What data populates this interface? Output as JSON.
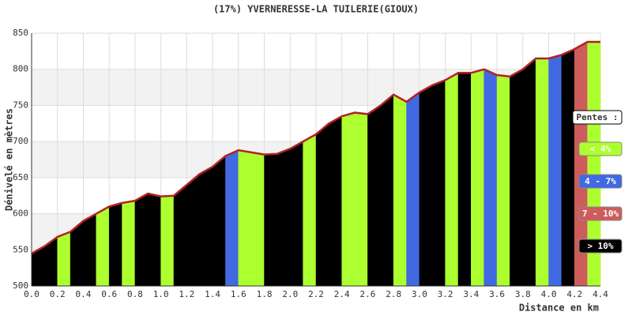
{
  "chart_data": {
    "type": "profile",
    "title": "(17%) YVERNERESSE-LA TUILERIE(GIOUX)",
    "x_label": "Distance en km",
    "y_label": "Dénivelé en mètres",
    "legend_title": "Pentes :",
    "x": [
      0.0,
      0.1,
      0.2,
      0.3,
      0.4,
      0.5,
      0.6,
      0.7,
      0.8,
      0.9,
      1.0,
      1.1,
      1.2,
      1.3,
      1.4,
      1.5,
      1.6,
      1.7,
      1.8,
      1.9,
      2.0,
      2.1,
      2.2,
      2.3,
      2.4,
      2.5,
      2.6,
      2.7,
      2.8,
      2.9,
      3.0,
      3.1,
      3.2,
      3.3,
      3.4,
      3.5,
      3.6,
      3.7,
      3.8,
      3.9,
      4.0,
      4.1,
      4.2,
      4.3,
      4.4
    ],
    "values": [
      545,
      555,
      568,
      575,
      590,
      600,
      610,
      615,
      618,
      628,
      624,
      625,
      640,
      655,
      665,
      680,
      688,
      685,
      682,
      683,
      690,
      700,
      710,
      725,
      735,
      740,
      738,
      750,
      765,
      755,
      768,
      778,
      785,
      795,
      795,
      800,
      792,
      790,
      800,
      815,
      815,
      820,
      828,
      838,
      838
    ],
    "classes": [
      3,
      3,
      0,
      3,
      3,
      0,
      3,
      0,
      3,
      3,
      0,
      3,
      3,
      3,
      3,
      1,
      0,
      0,
      3,
      3,
      3,
      0,
      3,
      3,
      0,
      0,
      3,
      3,
      0,
      1,
      3,
      3,
      0,
      3,
      0,
      1,
      0,
      3,
      3,
      0,
      1,
      3,
      2,
      0
    ],
    "series": [
      {
        "name": "< 4%",
        "color": "#adff2f"
      },
      {
        "name": "4 - 7%",
        "color": "#4169e1"
      },
      {
        "name": "7 - 10%",
        "color": "#cd5c5c"
      },
      {
        "name": "> 10%",
        "color": "#000000"
      }
    ],
    "line_color": "#b22222",
    "xlim": [
      0,
      4.4
    ],
    "ylim": [
      500,
      850
    ],
    "xticks": [
      {
        "value": 0,
        "label": "0.0"
      },
      0.2,
      0.4,
      0.6,
      0.8,
      {
        "value": 1,
        "label": "1.0"
      },
      1.2,
      1.4,
      1.6,
      1.8,
      {
        "value": 2,
        "label": "2.0"
      },
      2.2,
      2.4,
      2.6,
      2.8,
      {
        "value": 3,
        "label": "3.0"
      },
      3.2,
      3.4,
      3.6,
      3.8,
      {
        "value": 4,
        "label": "4.0"
      },
      4.2,
      4.4
    ],
    "yticks": [
      500,
      550,
      600,
      650,
      700,
      750,
      800,
      850
    ],
    "grid": true
  }
}
